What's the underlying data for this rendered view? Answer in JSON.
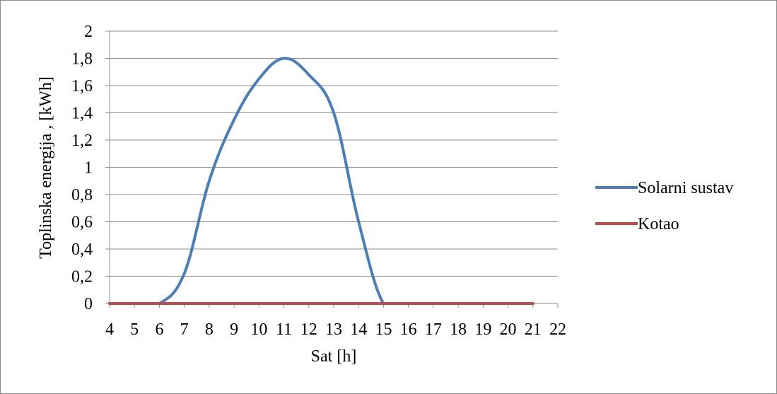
{
  "chart_data": {
    "type": "line",
    "xlabel": "Sat [h]",
    "ylabel": "Toplinska energija , [kWh]",
    "x_ticks": [
      "4",
      "5",
      "6",
      "7",
      "8",
      "9",
      "10",
      "11",
      "12",
      "13",
      "14",
      "15",
      "16",
      "17",
      "18",
      "19",
      "20",
      "21",
      "22"
    ],
    "y_ticks": [
      "0",
      "0,2",
      "0,4",
      "0,6",
      "0,8",
      "1",
      "1,2",
      "1,4",
      "1,6",
      "1,8",
      "2"
    ],
    "xlim": [
      4,
      22
    ],
    "ylim": [
      0,
      2
    ],
    "grid": "horizontal",
    "legend_position": "right",
    "x": [
      4,
      5,
      6,
      7,
      8,
      9,
      10,
      11,
      12,
      13,
      14,
      15,
      16,
      17,
      18,
      19,
      20,
      21
    ],
    "series": [
      {
        "name": "Solarni sustav",
        "color": "#4a7ebb",
        "values": [
          0,
          0,
          0,
          0.22,
          0.9,
          1.35,
          1.65,
          1.8,
          1.68,
          1.4,
          0.6,
          0,
          0,
          0,
          0,
          0,
          0,
          0
        ]
      },
      {
        "name": "Kotao",
        "color": "#be4b48",
        "values": [
          0,
          0,
          0,
          0,
          0,
          0,
          0,
          0,
          0,
          0,
          0,
          0,
          0,
          0,
          0,
          0,
          0,
          0
        ]
      }
    ]
  }
}
